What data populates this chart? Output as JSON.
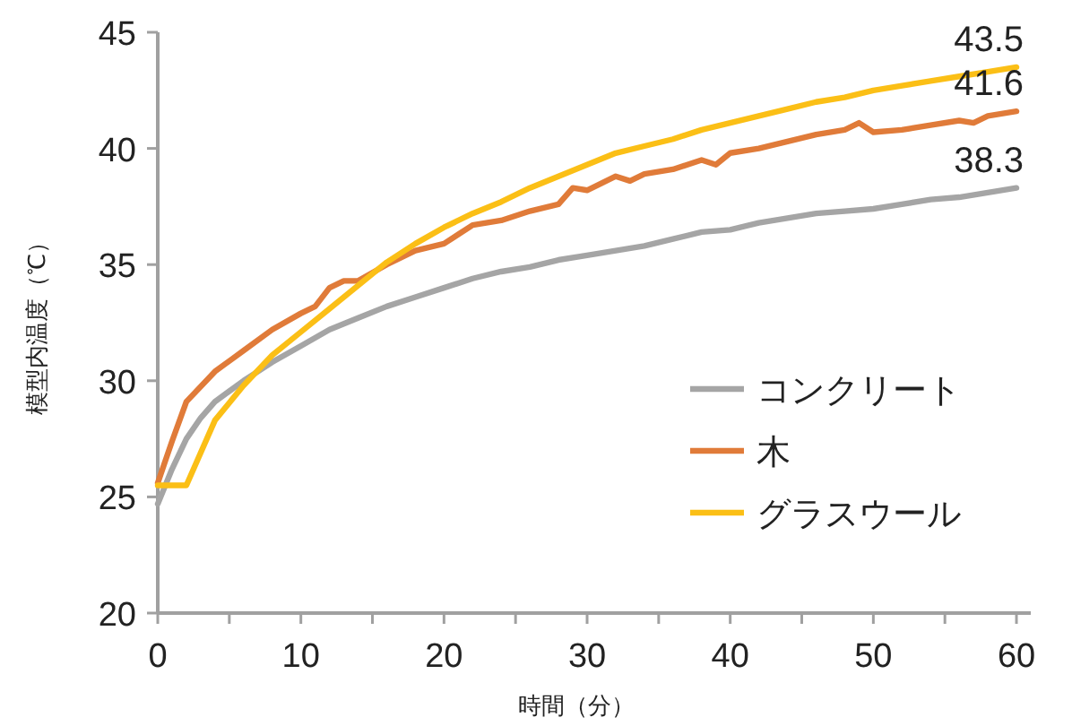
{
  "chart_data": {
    "type": "line",
    "xlabel": "時間（分）",
    "ylabel": "模型内温度（℃）",
    "xlim": [
      0,
      61
    ],
    "ylim": [
      20,
      45
    ],
    "xticks": [
      0,
      {
        "value": 5,
        "label": null
      },
      10,
      {
        "value": 15,
        "label": null
      },
      20,
      {
        "value": 25,
        "label": null
      },
      30,
      {
        "value": 35,
        "label": null
      },
      40,
      {
        "value": 45,
        "label": null
      },
      50,
      {
        "value": 55,
        "label": null
      },
      60
    ],
    "yticks": [
      20,
      25,
      30,
      35,
      40,
      45
    ],
    "grid": false,
    "legend": "right",
    "marker": "none",
    "line_style": "solid",
    "series": [
      {
        "name": "コンクリート",
        "color": "#a5a5a5",
        "x": [
          0,
          1,
          2,
          3,
          4,
          6,
          8,
          10,
          12,
          14,
          16,
          18,
          20,
          22,
          24,
          26,
          28,
          30,
          32,
          34,
          36,
          38,
          40,
          42,
          44,
          46,
          48,
          50,
          52,
          54,
          56,
          58,
          60
        ],
        "values": [
          24.7,
          26.2,
          27.5,
          28.4,
          29.1,
          30.0,
          30.8,
          31.5,
          32.2,
          32.7,
          33.2,
          33.6,
          34.0,
          34.4,
          34.7,
          34.9,
          35.2,
          35.4,
          35.6,
          35.8,
          36.1,
          36.4,
          36.5,
          36.8,
          37.0,
          37.2,
          37.3,
          37.4,
          37.6,
          37.8,
          37.9,
          38.1,
          38.3
        ],
        "value_labels": [
          null,
          null,
          null,
          null,
          null,
          null,
          null,
          null,
          null,
          null,
          null,
          null,
          null,
          null,
          null,
          null,
          null,
          null,
          null,
          null,
          null,
          null,
          null,
          null,
          null,
          null,
          null,
          null,
          null,
          null,
          null,
          null,
          "38.3"
        ]
      },
      {
        "name": "木",
        "color": "#e07b39",
        "x": [
          0,
          1,
          2,
          4,
          6,
          8,
          10,
          11,
          12,
          13,
          14,
          16,
          18,
          20,
          22,
          24,
          26,
          28,
          29,
          30,
          32,
          33,
          34,
          36,
          38,
          39,
          40,
          42,
          44,
          46,
          48,
          49,
          50,
          52,
          54,
          56,
          57,
          58,
          60
        ],
        "values": [
          25.6,
          27.4,
          29.1,
          30.4,
          31.3,
          32.2,
          32.9,
          33.2,
          34.0,
          34.3,
          34.3,
          35.0,
          35.6,
          35.9,
          36.7,
          36.9,
          37.3,
          37.6,
          38.3,
          38.2,
          38.8,
          38.6,
          38.9,
          39.1,
          39.5,
          39.3,
          39.8,
          40.0,
          40.3,
          40.6,
          40.8,
          41.1,
          40.7,
          40.8,
          41.0,
          41.2,
          41.1,
          41.4,
          41.6
        ],
        "value_labels": [
          null,
          null,
          null,
          null,
          null,
          null,
          null,
          null,
          null,
          null,
          null,
          null,
          null,
          null,
          null,
          null,
          null,
          null,
          null,
          null,
          null,
          null,
          null,
          null,
          null,
          null,
          null,
          null,
          null,
          null,
          null,
          null,
          null,
          null,
          null,
          null,
          null,
          null,
          "41.6"
        ]
      },
      {
        "name": "グラスウール",
        "color": "#fbbf16",
        "x": [
          0,
          1,
          2,
          4,
          6,
          8,
          10,
          12,
          14,
          16,
          18,
          20,
          22,
          24,
          26,
          28,
          30,
          32,
          34,
          36,
          38,
          40,
          42,
          44,
          46,
          48,
          50,
          52,
          54,
          56,
          58,
          60
        ],
        "values": [
          25.5,
          25.5,
          25.5,
          28.3,
          29.8,
          31.1,
          32.1,
          33.1,
          34.1,
          35.1,
          35.9,
          36.6,
          37.2,
          37.7,
          38.3,
          38.8,
          39.3,
          39.8,
          40.1,
          40.4,
          40.8,
          41.1,
          41.4,
          41.7,
          42.0,
          42.2,
          42.5,
          42.7,
          42.9,
          43.1,
          43.3,
          43.5
        ],
        "value_labels": [
          null,
          null,
          null,
          null,
          null,
          null,
          null,
          null,
          null,
          null,
          null,
          null,
          null,
          null,
          null,
          null,
          null,
          null,
          null,
          null,
          null,
          null,
          null,
          null,
          null,
          null,
          null,
          null,
          null,
          null,
          null,
          "43.5"
        ]
      }
    ]
  }
}
